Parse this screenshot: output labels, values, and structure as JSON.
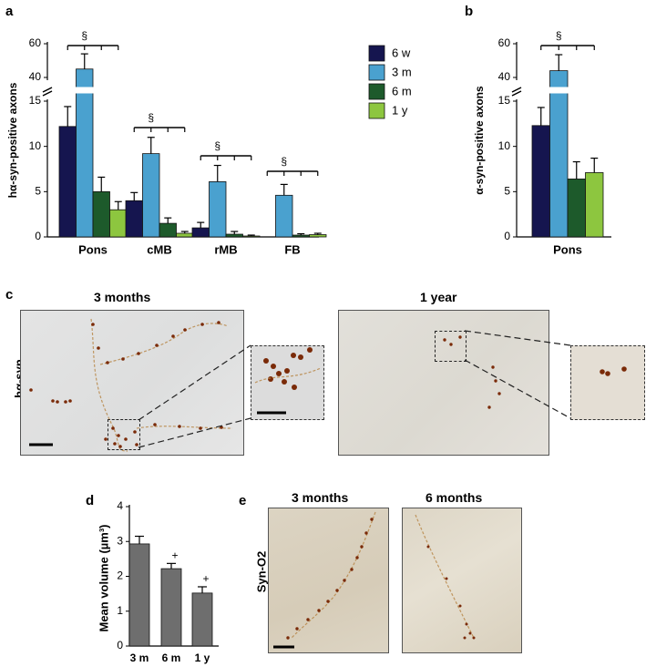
{
  "panel_labels": {
    "a": "a",
    "b": "b",
    "c": "c",
    "d": "d",
    "e": "e"
  },
  "colors": {
    "6 w": "#15154f",
    "3 m": "#4aa1cf",
    "6 m": "#1d5a2b",
    "1 y": "#8dc63f",
    "grey_bar": "#6e6e6e",
    "particle": "#7a2a08"
  },
  "significance_symbol": "§",
  "panel_c": {
    "ylabel": "hα-syn",
    "title_left": "3 months",
    "title_right": "1 year"
  },
  "panel_e": {
    "ylabel": "Syn-O2",
    "title_left": "3 months",
    "title_right": "6 months"
  },
  "chart_data": [
    {
      "panel": "a",
      "type": "bar",
      "ylabel": "hα-syn-positive axons",
      "categories": [
        "Pons",
        "cMB",
        "rMB",
        "FB"
      ],
      "series": [
        {
          "name": "6 w",
          "values": [
            12.2,
            4.0,
            1.0,
            0.0
          ],
          "errors": [
            2.2,
            0.9,
            0.6,
            0.0
          ]
        },
        {
          "name": "3 m",
          "values": [
            45.0,
            9.2,
            6.1,
            4.6
          ],
          "errors": [
            9.0,
            1.8,
            1.8,
            1.2
          ]
        },
        {
          "name": "6 m",
          "values": [
            5.0,
            1.5,
            0.3,
            0.2
          ],
          "errors": [
            1.6,
            0.6,
            0.3,
            0.15
          ]
        },
        {
          "name": "1 y",
          "values": [
            3.0,
            0.4,
            0.1,
            0.25
          ],
          "errors": [
            0.9,
            0.2,
            0.1,
            0.15
          ]
        }
      ],
      "y_break": true,
      "ylim_lower": [
        0,
        15
      ],
      "yticks_lower": [
        0,
        5,
        10,
        15
      ],
      "ylim_upper": [
        40,
        60
      ],
      "yticks_upper": [
        40,
        60
      ],
      "legend": {
        "entries": [
          "6 w",
          "3 m",
          "6 m",
          "1 y"
        ],
        "placement": "top-right"
      },
      "significance": [
        "§",
        "§",
        "§",
        "§"
      ]
    },
    {
      "panel": "b",
      "type": "bar",
      "ylabel": "α-syn-positive axons",
      "categories": [
        "Pons"
      ],
      "series": [
        {
          "name": "6 w",
          "values": [
            12.3
          ],
          "errors": [
            2.0
          ]
        },
        {
          "name": "3 m",
          "values": [
            44.0
          ],
          "errors": [
            9.5
          ]
        },
        {
          "name": "6 m",
          "values": [
            6.4
          ],
          "errors": [
            1.9
          ]
        },
        {
          "name": "1 y",
          "values": [
            7.1
          ],
          "errors": [
            1.6
          ]
        }
      ],
      "y_break": true,
      "ylim_lower": [
        0,
        15
      ],
      "yticks_lower": [
        0,
        5,
        10,
        15
      ],
      "ylim_upper": [
        40,
        60
      ],
      "yticks_upper": [
        40,
        60
      ],
      "significance": [
        "§"
      ]
    },
    {
      "panel": "d",
      "type": "bar",
      "ylabel": "Mean volume (µm³)",
      "categories": [
        "3 m",
        "6 m",
        "1 y"
      ],
      "values": [
        2.93,
        2.22,
        1.52
      ],
      "errors": [
        0.22,
        0.15,
        0.18
      ],
      "ylim": [
        0,
        4
      ],
      "yticks": [
        0,
        1,
        2,
        3,
        4
      ],
      "annotations": [
        "",
        "+",
        "+"
      ]
    }
  ]
}
